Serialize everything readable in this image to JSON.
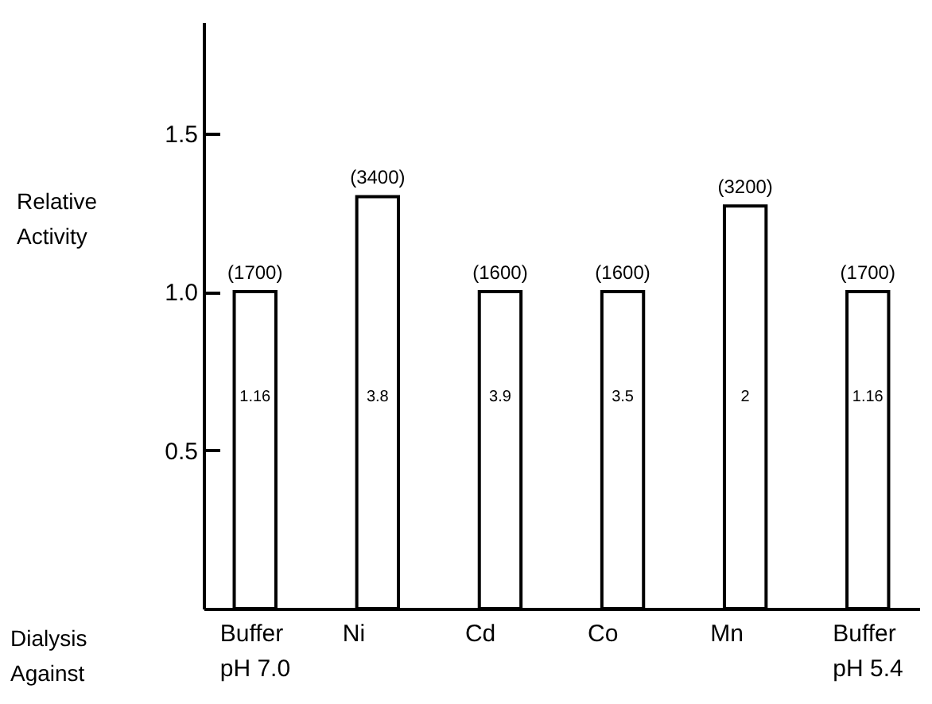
{
  "chart_data": {
    "type": "bar",
    "ylabel": "Relative Activity",
    "xlabel": "Dialysis Against",
    "categories": [
      "Buffer\npH 7.0",
      "Ni",
      "Cd",
      "Co",
      "Mn",
      "Buffer\npH 5.4"
    ],
    "values": [
      1.0,
      1.3,
      1.0,
      1.0,
      1.27,
      1.0
    ],
    "color": "#ffffff",
    "ylim": [
      0,
      1.85
    ],
    "yticks": [
      {
        "value": 0.5,
        "label": "0.5"
      },
      {
        "value": 1.0,
        "label": "1.0"
      },
      {
        "value": 1.5,
        "label": "1.5"
      }
    ],
    "annotations": [
      {
        "text": "(1700)",
        "x": "Buffer\npH 7.0",
        "y": 1.0
      },
      {
        "text": "(3400)",
        "x": "Ni",
        "y": 1.3
      },
      {
        "text": "(1600)",
        "x": "Cd",
        "y": 1.0
      },
      {
        "text": "(1600)",
        "x": "Co",
        "y": 1.0
      },
      {
        "text": "(3200)",
        "x": "Mn",
        "y": 1.27
      },
      {
        "text": "(1700)",
        "x": "Buffer\npH 5.4",
        "y": 1.0
      },
      {
        "text": "1.16",
        "x": "Buffer\npH 7.0",
        "y": 0.67
      },
      {
        "text": "3.8",
        "x": "Ni",
        "y": 0.67
      },
      {
        "text": "3.9",
        "x": "Cd",
        "y": 0.67
      },
      {
        "text": "3.5",
        "x": "Co",
        "y": 0.67
      },
      {
        "text": "2",
        "x": "Mn",
        "y": 0.67
      },
      {
        "text": "1.16",
        "x": "Buffer\npH 5.4",
        "y": 0.67
      }
    ],
    "grid": false
  }
}
